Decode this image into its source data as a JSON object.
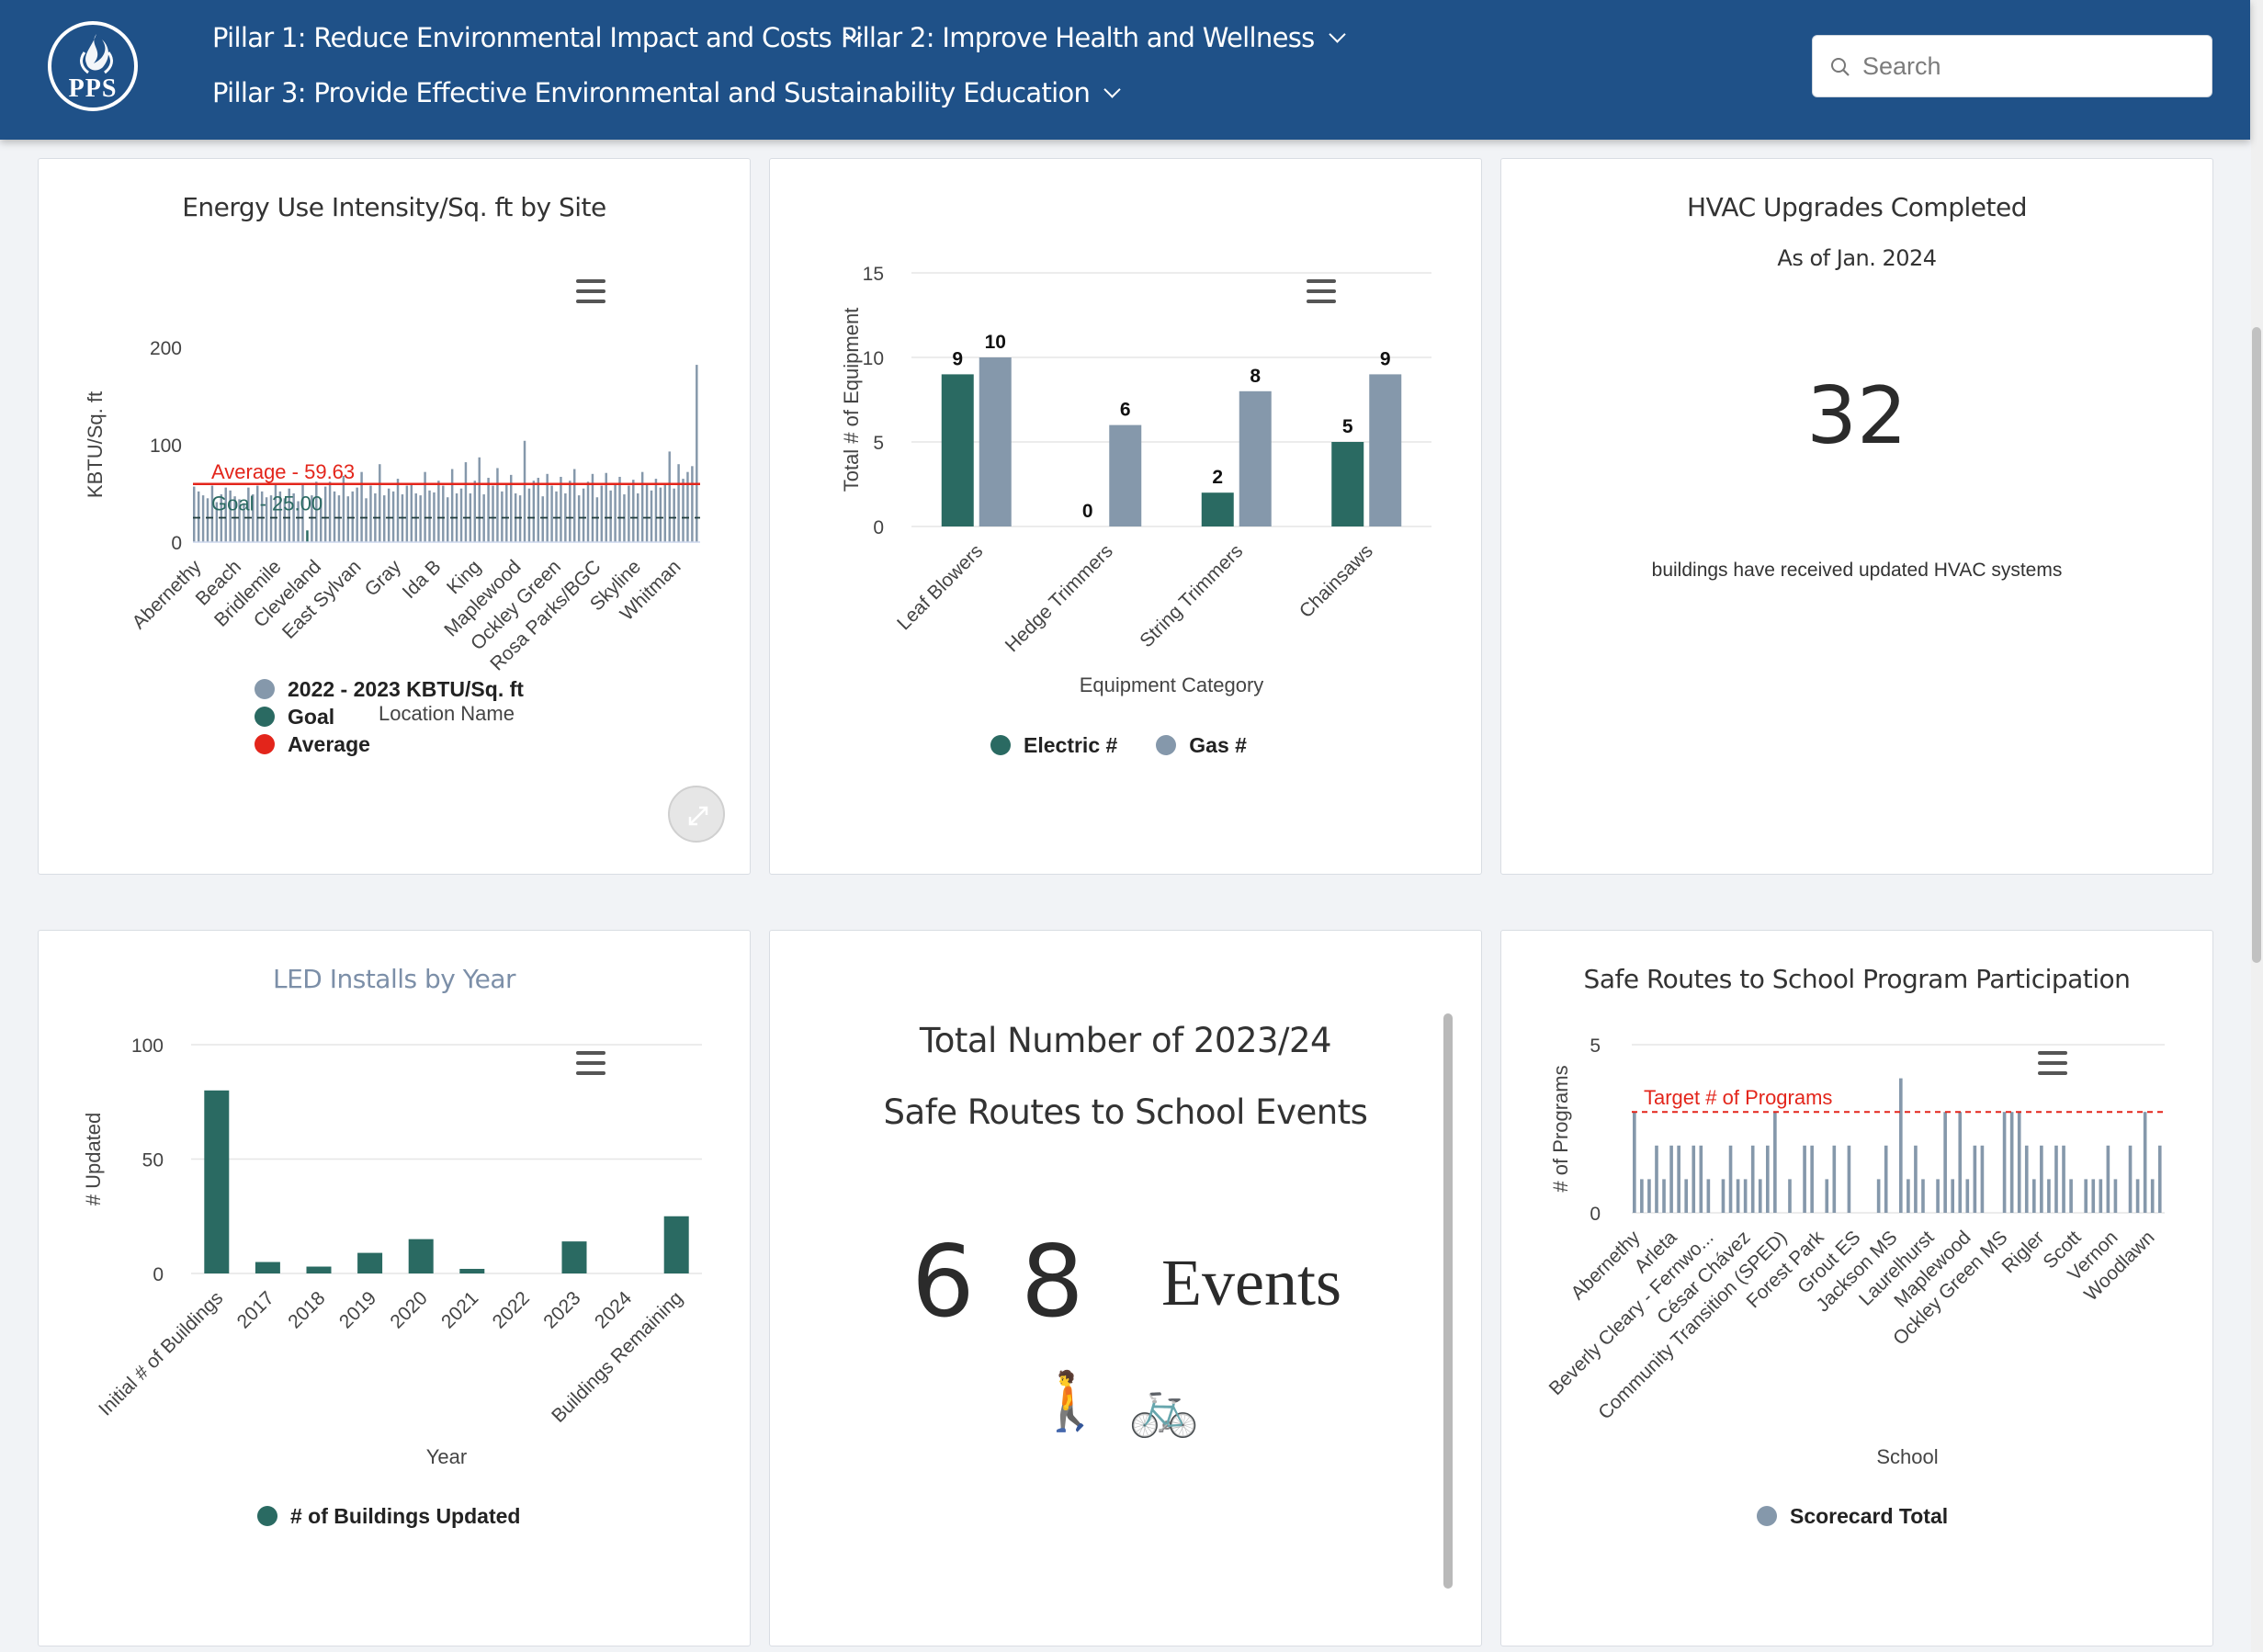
{
  "header": {
    "logo_text": "PPS",
    "nav": [
      {
        "label": "Pillar 1: Reduce Environmental Impact and Costs"
      },
      {
        "label": "Pillar 2: Improve Health and Wellness"
      },
      {
        "label": "Pillar 3: Provide Effective Environmental and Sustainability Education"
      }
    ],
    "search": {
      "placeholder": "Search",
      "value": ""
    }
  },
  "colors": {
    "header": "#1f5188",
    "dark_green": "#2a6a62",
    "slate": "#8598ab",
    "red": "#e3251b",
    "title_blue": "#7c8fa8"
  },
  "cards": {
    "eui": {
      "title": "Energy Use Intensity/Sq. ft by Site",
      "average_label": "Average - 59.63",
      "goal_label": "Goal - 25.00",
      "legend": [
        "2022 - 2023 KBTU/Sq. ft",
        "Goal",
        "Average"
      ]
    },
    "equipment": {
      "legend": [
        "Electric #",
        "Gas #"
      ]
    },
    "hvac": {
      "title": "HVAC Upgrades Completed",
      "subtitle": "As of Jan. 2024",
      "number": "32",
      "caption": "buildings have received updated HVAC systems"
    },
    "led": {
      "title": "LED Installs by Year",
      "legend": [
        "# of Buildings Updated"
      ]
    },
    "events": {
      "title_line1": "Total Number of 2023/24",
      "title_line2": "Safe Routes to School Events",
      "number": "6 8",
      "unit": "Events",
      "icons": [
        "🚶",
        "🚲"
      ]
    },
    "srts": {
      "title": "Safe Routes to School Program Participation",
      "target_label": "Target # of Programs",
      "legend": [
        "Scorecard Total"
      ]
    }
  },
  "chart_data": [
    {
      "type": "bar",
      "title": "Energy Use Intensity/Sq. ft by Site",
      "xlabel": "Location Name",
      "ylabel": "KBTU/Sq. ft",
      "ylim": [
        0,
        200
      ],
      "yticks": [
        0,
        100,
        200
      ],
      "tick_labels": [
        "Abernethy",
        "Beach",
        "Bridlemile",
        "Cleveland",
        "East Sylvan",
        "Gray",
        "Ida B",
        "King",
        "Maplewood",
        "Ockley Green",
        "Rosa Parks/BGC",
        "Skyline",
        "Whitman"
      ],
      "series": [
        {
          "name": "2022 - 2023 KBTU/Sq. ft",
          "values": [
            57,
            52,
            48,
            45,
            58,
            41,
            49,
            56,
            53,
            47,
            44,
            40,
            56,
            49,
            58,
            52,
            46,
            48,
            59,
            52,
            45,
            55,
            50,
            42,
            60,
            12,
            48,
            62,
            45,
            57,
            62,
            52,
            48,
            68,
            47,
            52,
            56,
            72,
            45,
            58,
            50,
            80,
            48,
            55,
            52,
            65,
            49,
            58,
            60,
            50,
            48,
            72,
            53,
            51,
            63,
            58,
            46,
            75,
            50,
            55,
            82,
            50,
            63,
            87,
            49,
            66,
            58,
            76,
            52,
            59,
            69,
            50,
            48,
            104,
            55,
            63,
            66,
            47,
            70,
            58,
            52,
            67,
            50,
            63,
            75,
            48,
            55,
            62,
            70,
            46,
            58,
            71,
            53,
            60,
            67,
            49,
            58,
            64,
            50,
            72,
            60,
            53,
            65,
            56,
            60,
            93,
            55,
            80,
            65,
            72,
            78,
            182
          ]
        },
        {
          "name": "Goal",
          "values": [
            25
          ]
        },
        {
          "name": "Average",
          "values": [
            59.63
          ]
        }
      ],
      "goal": 25.0,
      "average": 59.63,
      "legend_position": "bottom"
    },
    {
      "type": "bar",
      "xlabel": "Equipment Category",
      "ylabel": "Total # of Equipment",
      "ylim": [
        0,
        15
      ],
      "yticks": [
        0,
        5,
        10,
        15
      ],
      "categories": [
        "Leaf Blowers",
        "Hedge Trimmers",
        "String Trimmers",
        "Chainsaws"
      ],
      "series": [
        {
          "name": "Electric #",
          "values": [
            9,
            0,
            2,
            5
          ]
        },
        {
          "name": "Gas #",
          "values": [
            10,
            6,
            8,
            9
          ]
        }
      ],
      "legend_position": "bottom"
    },
    {
      "type": "bar",
      "title": "LED Installs by Year",
      "xlabel": "Year",
      "ylabel": "# Updated",
      "ylim": [
        0,
        100
      ],
      "yticks": [
        0,
        50,
        100
      ],
      "categories": [
        "Initial # of Buildings",
        "2017",
        "2018",
        "2019",
        "2020",
        "2021",
        "2022",
        "2023",
        "2024",
        "Buildings Remaining"
      ],
      "series": [
        {
          "name": "# of Buildings Updated",
          "values": [
            80,
            5,
            3,
            9,
            15,
            2,
            0,
            14,
            0,
            25
          ]
        }
      ],
      "legend_position": "bottom"
    },
    {
      "type": "bar",
      "title": "Safe Routes to School Program Participation",
      "xlabel": "School",
      "ylabel": "# of Programs",
      "ylim": [
        0,
        5
      ],
      "yticks": [
        0,
        5
      ],
      "target": 3,
      "tick_labels": [
        "Abernethy",
        "Arleta",
        "Beverly Cleary - Fernwo...",
        "César Chávez",
        "Community Transition (SPED)",
        "Forest Park",
        "Grout ES",
        "Jackson MS",
        "Laurelhurst",
        "Maplewood",
        "Ockley Green MS",
        "Rigler",
        "Scott",
        "Vernon",
        "Woodlawn"
      ],
      "series": [
        {
          "name": "Scorecard Total",
          "values": [
            3,
            1,
            1,
            2,
            1,
            2,
            2,
            1,
            2,
            2,
            1,
            0,
            1,
            2,
            1,
            1,
            2,
            1,
            2,
            3,
            0,
            1,
            0,
            2,
            2,
            0,
            1,
            2,
            0,
            2,
            0,
            0,
            0,
            1,
            2,
            0,
            4,
            1,
            2,
            1,
            0,
            1,
            3,
            1,
            3,
            1,
            2,
            2,
            0,
            0,
            3,
            3,
            3,
            2,
            1,
            2,
            1,
            2,
            2,
            1,
            0,
            1,
            1,
            1,
            2,
            1,
            0,
            2,
            1,
            3,
            1,
            2
          ]
        }
      ],
      "legend_position": "bottom"
    }
  ]
}
